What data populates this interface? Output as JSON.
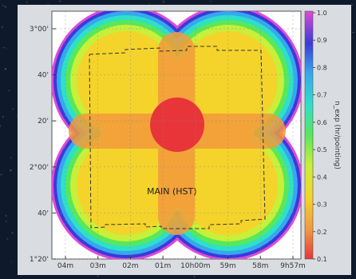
{
  "chart_data": {
    "type": "heatmap",
    "title": "",
    "xlabel": "",
    "ylabel": "",
    "colorbar": {
      "label": "n_exp (hr/pointing)",
      "range": [
        0.1,
        1.0
      ],
      "ticks": [
        "1.0",
        "0.9",
        "0.8",
        "0.7",
        "0.6",
        "0.5",
        "0.4",
        "0.3",
        "0.2",
        "0.1"
      ],
      "colormap": "rainbow"
    },
    "x_ticks": [
      "04m",
      "03m",
      "02m",
      "01m",
      "10h00m",
      "59m",
      "58m",
      "9h57m"
    ],
    "y_ticks": [
      "3°00'",
      "40'",
      "20'",
      "2°00'",
      "40'",
      "1°20'"
    ],
    "annotation": "MAIN (HST)",
    "grid": true,
    "legend": "none"
  },
  "colors": {
    "background": "#0e1a2b",
    "panel": "#d9dde2",
    "footprint_outline": "#333333"
  }
}
